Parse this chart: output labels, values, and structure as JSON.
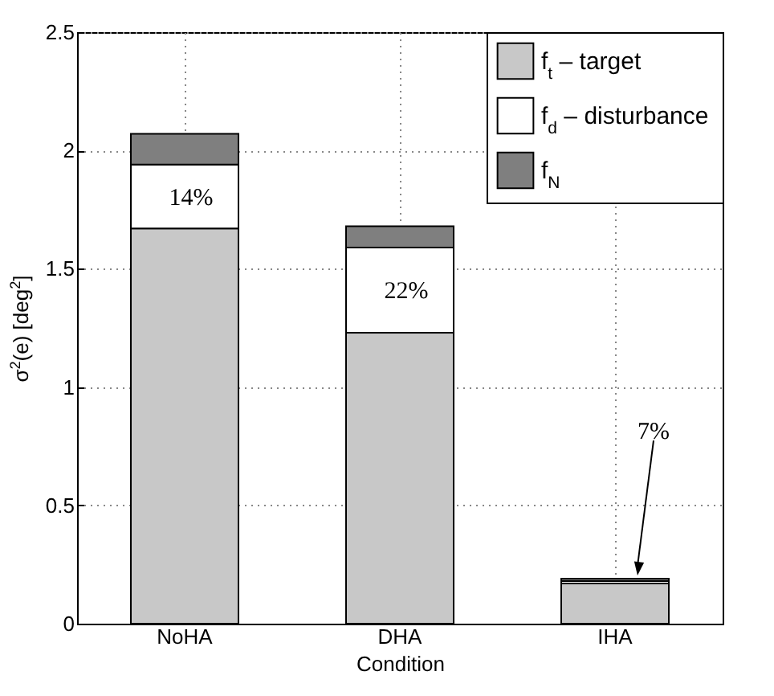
{
  "chart_data": {
    "type": "bar",
    "stacked": true,
    "xlabel": "Condition",
    "ylabel": "σ$^{2}$(e)  [deg$^{2}$]",
    "categories": [
      "NoHA",
      "DHA",
      "IHA"
    ],
    "series": [
      {
        "name": "f$_{t}$ – target",
        "color": "#c8c8c8",
        "values": [
          1.67,
          1.23,
          0.17
        ]
      },
      {
        "name": "f$_{d}$ – disturbance",
        "color": "#ffffff",
        "values": [
          0.27,
          0.36,
          0.01
        ]
      },
      {
        "name": "f$_{N}$",
        "color": "#7f7f7f",
        "values": [
          0.13,
          0.09,
          0.01
        ]
      }
    ],
    "ylim": [
      0,
      2.5
    ],
    "yticks": [
      0,
      0.5,
      1,
      1.5,
      2,
      2.5
    ],
    "grid": true,
    "legend": "top right",
    "annotations": [
      "14%",
      "22%",
      "7%"
    ]
  }
}
